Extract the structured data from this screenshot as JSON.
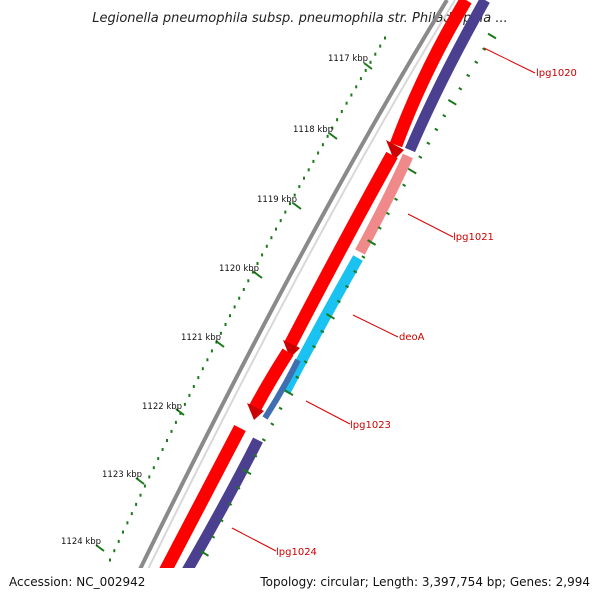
{
  "title": "Legionella pneumophila subsp. pneumophila str. Philadelphia ...",
  "ticks": [
    "1117 kbp",
    "1118 kbp",
    "1119 kbp",
    "1120 kbp",
    "1121 kbp",
    "1122 kbp",
    "1123 kbp",
    "1124 kbp"
  ],
  "genes": [
    "lpg1020",
    "lpg1021",
    "deoA",
    "lpg1023",
    "lpg1024"
  ],
  "footer": {
    "accession": "Accession: NC_002942",
    "topology": "Topology: circular; Length: 3,397,754 bp; Genes: 2,994"
  },
  "colors": {
    "forward_cds": "#ff0000",
    "reverse_cds": "#4b3f8f",
    "lpg1021": "#f08a8a",
    "deoA": "#19c2f0",
    "lpg1023": "#3f6fb0",
    "backbone": "#8a8a8a",
    "tick_marks": "#1a7a1a",
    "label_line": "#dd0000"
  }
}
